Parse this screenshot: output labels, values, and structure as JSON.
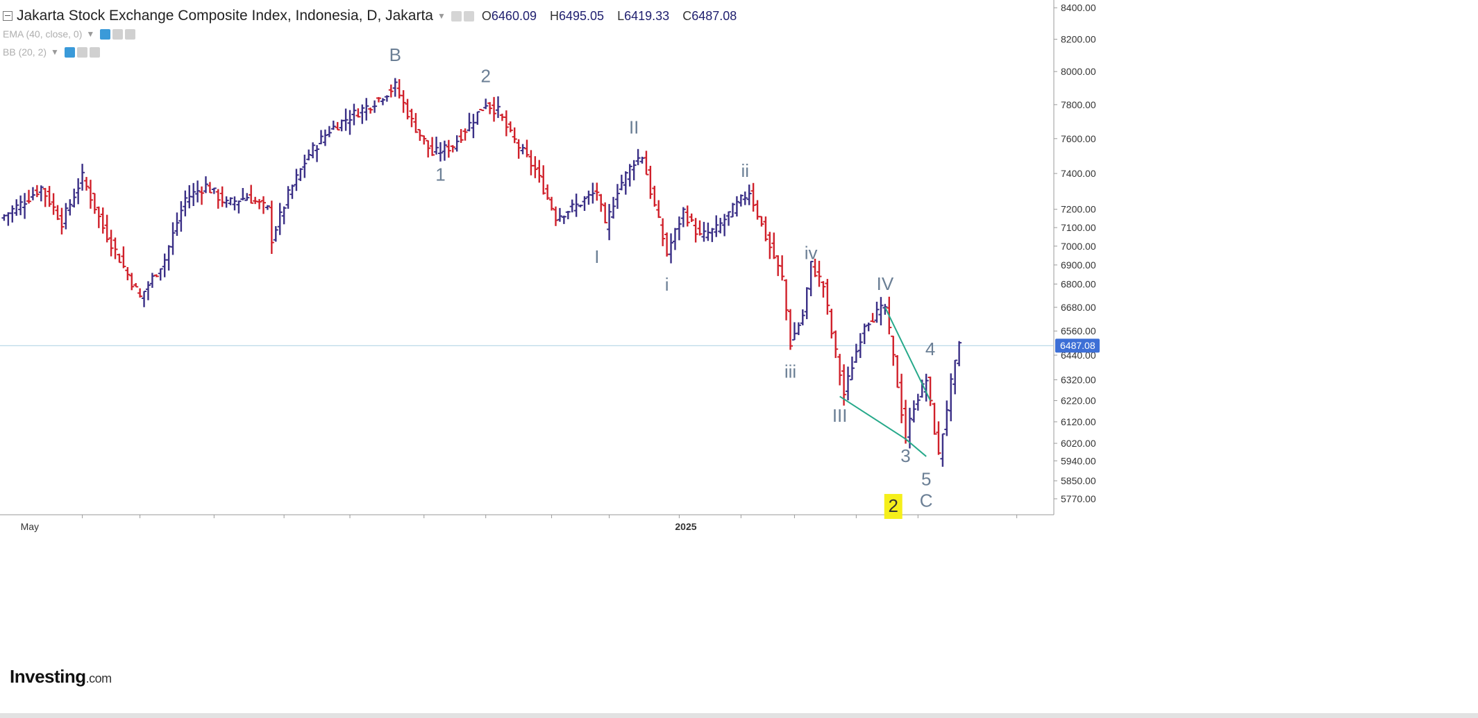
{
  "header": {
    "title": "Jakarta Stock Exchange Composite Index, Indonesia, D, Jakarta",
    "ohlc": [
      {
        "k": "O",
        "v": "6460.09"
      },
      {
        "k": "H",
        "v": "6495.05"
      },
      {
        "k": "L",
        "v": "6419.33"
      },
      {
        "k": "C",
        "v": "6487.08"
      }
    ],
    "indicators": [
      "EMA (40, close, 0)",
      "BB (20, 2)"
    ]
  },
  "branding": {
    "logo_main": "Investing",
    "logo_suffix": ".com"
  },
  "colors": {
    "up": "#3a2f86",
    "down": "#d0202a",
    "trendline": "#26a98a",
    "price_tag": "#3d6fd6",
    "wave_label": "#6b7f95",
    "highlight": "#f5ef1b"
  },
  "chart_data": {
    "type": "ohlc",
    "title": "Jakarta Stock Exchange Composite Index, Indonesia, D, Jakarta",
    "y_scale": "log",
    "ylim": [
      5700,
      8450
    ],
    "x_range": [
      0,
      256
    ],
    "y_ticks": [
      "8400.00",
      "8200.00",
      "8000.00",
      "7800.00",
      "7600.00",
      "7400.00",
      "7200.00",
      "7100.00",
      "7000.00",
      "6900.00",
      "6800.00",
      "6680.00",
      "6560.00",
      "6440.00",
      "6320.00",
      "6220.00",
      "6120.00",
      "6020.00",
      "5940.00",
      "5850.00",
      "5770.00"
    ],
    "x_tick_labels": [
      {
        "label": "May",
        "x": 6
      },
      {
        "label": "2025",
        "x": 165
      }
    ],
    "last_price": "6487.08",
    "waypoints": [
      [
        0,
        7150
      ],
      [
        5,
        7230
      ],
      [
        10,
        7320
      ],
      [
        15,
        7130
      ],
      [
        20,
        7380
      ],
      [
        25,
        7100
      ],
      [
        30,
        6890
      ],
      [
        34,
        6730
      ],
      [
        40,
        6930
      ],
      [
        45,
        7260
      ],
      [
        50,
        7330
      ],
      [
        55,
        7230
      ],
      [
        60,
        7270
      ],
      [
        65,
        7200
      ],
      [
        66,
        7040
      ],
      [
        70,
        7280
      ],
      [
        75,
        7510
      ],
      [
        80,
        7650
      ],
      [
        85,
        7730
      ],
      [
        90,
        7800
      ],
      [
        96,
        7910
      ],
      [
        100,
        7700
      ],
      [
        105,
        7510
      ],
      [
        110,
        7560
      ],
      [
        118,
        7810
      ],
      [
        121,
        7760
      ],
      [
        124,
        7620
      ],
      [
        130,
        7420
      ],
      [
        135,
        7160
      ],
      [
        140,
        7220
      ],
      [
        145,
        7300
      ],
      [
        147,
        7100
      ],
      [
        150,
        7310
      ],
      [
        154,
        7470
      ],
      [
        156,
        7500
      ],
      [
        158,
        7300
      ],
      [
        162,
        6960
      ],
      [
        166,
        7190
      ],
      [
        170,
        7050
      ],
      [
        174,
        7090
      ],
      [
        178,
        7200
      ],
      [
        182,
        7300
      ],
      [
        186,
        7050
      ],
      [
        190,
        6830
      ],
      [
        192,
        6500
      ],
      [
        195,
        6640
      ],
      [
        197,
        6900
      ],
      [
        200,
        6790
      ],
      [
        202,
        6550
      ],
      [
        205,
        6250
      ],
      [
        210,
        6600
      ],
      [
        215,
        6680
      ],
      [
        220,
        6040
      ],
      [
        222,
        6200
      ],
      [
        225,
        6320
      ],
      [
        228,
        5960
      ],
      [
        231,
        6300
      ],
      [
        233,
        6480
      ]
    ],
    "wave_labels": [
      {
        "text": "B",
        "x": 96,
        "y": 8065
      },
      {
        "text": "2",
        "x": 118,
        "y": 7935
      },
      {
        "text": "1",
        "x": 107,
        "y": 7360
      },
      {
        "text": "II",
        "x": 154,
        "y": 7630
      },
      {
        "text": "I",
        "x": 145,
        "y": 6910
      },
      {
        "text": "ii",
        "x": 181,
        "y": 7380
      },
      {
        "text": "i",
        "x": 162,
        "y": 6765
      },
      {
        "text": "iv",
        "x": 197,
        "y": 6930
      },
      {
        "text": "iii",
        "x": 192,
        "y": 6330
      },
      {
        "text": "IV",
        "x": 215,
        "y": 6770
      },
      {
        "text": "III",
        "x": 204,
        "y": 6120
      },
      {
        "text": "4",
        "x": 226,
        "y": 6440
      },
      {
        "text": "3",
        "x": 220,
        "y": 5935
      },
      {
        "text": "5",
        "x": 225,
        "y": 5830
      },
      {
        "text": "C",
        "x": 225,
        "y": 5735
      },
      {
        "text": "2",
        "x": 217,
        "y": 5712,
        "highlight": true
      }
    ],
    "trendlines": [
      {
        "from": [
          204,
          6240
        ],
        "to": [
          220,
          6040
        ]
      },
      {
        "from": [
          220,
          6040
        ],
        "to": [
          225,
          5960
        ]
      },
      {
        "from": [
          215,
          6680
        ],
        "to": [
          226,
          6220
        ]
      }
    ]
  }
}
